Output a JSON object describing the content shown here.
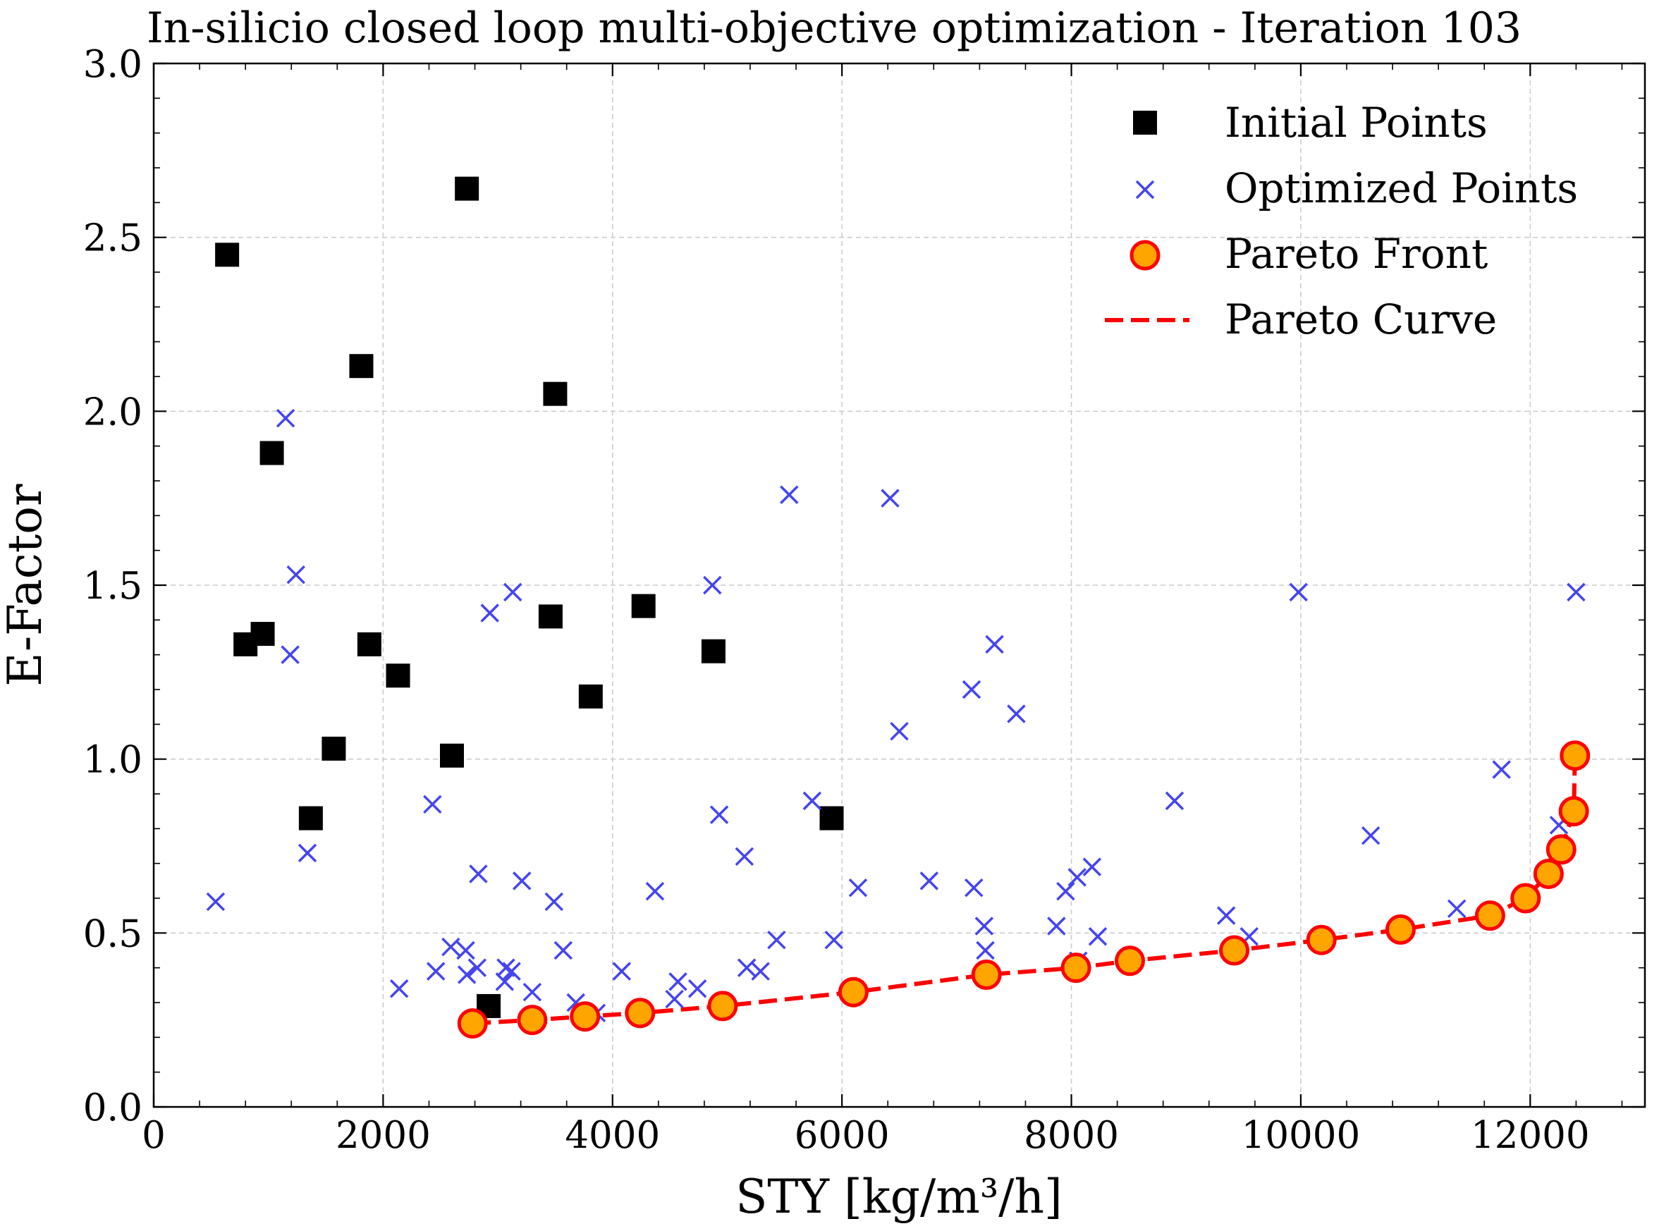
{
  "chart_data": {
    "type": "scatter",
    "title": "In-silicio closed loop multi-objective optimization - Iteration 103",
    "xlabel": "STY [kg/m³/h]",
    "ylabel": "E-Factor",
    "xlim": [
      0,
      13000
    ],
    "ylim": [
      0,
      3.0
    ],
    "xticks": [
      0,
      2000,
      4000,
      6000,
      8000,
      10000,
      12000
    ],
    "yticks": [
      0.0,
      0.5,
      1.0,
      1.5,
      2.0,
      2.5,
      3.0
    ],
    "xtick_labels": [
      "0",
      "2000",
      "4000",
      "6000",
      "8000",
      "10000",
      "12000"
    ],
    "ytick_labels": [
      "0.0",
      "0.5",
      "1.0",
      "1.5",
      "2.0",
      "2.5",
      "3.0"
    ],
    "grid": true,
    "legend_position": "top-right",
    "colors": {
      "initial": "#000000",
      "optimized": "#4444ee",
      "pareto_fill": "#ffa500",
      "pareto_edge": "#ff0000",
      "curve": "#ff0000",
      "grid": "#cccccc"
    },
    "series": [
      {
        "name": "Initial Points",
        "marker": "square",
        "points": [
          [
            640,
            2.45
          ],
          [
            2730,
            2.64
          ],
          [
            1810,
            2.13
          ],
          [
            3500,
            2.05
          ],
          [
            1030,
            1.88
          ],
          [
            950,
            1.36
          ],
          [
            800,
            1.33
          ],
          [
            1880,
            1.33
          ],
          [
            2130,
            1.24
          ],
          [
            3460,
            1.41
          ],
          [
            4270,
            1.44
          ],
          [
            4880,
            1.31
          ],
          [
            3810,
            1.18
          ],
          [
            1570,
            1.03
          ],
          [
            2600,
            1.01
          ],
          [
            1370,
            0.83
          ],
          [
            5910,
            0.83
          ],
          [
            2920,
            0.29
          ]
        ]
      },
      {
        "name": "Optimized Points",
        "marker": "x",
        "points": [
          [
            1150,
            1.98
          ],
          [
            1240,
            1.53
          ],
          [
            1190,
            1.3
          ],
          [
            1340,
            0.73
          ],
          [
            540,
            0.59
          ],
          [
            2430,
            0.87
          ],
          [
            2140,
            0.34
          ],
          [
            2460,
            0.39
          ],
          [
            2590,
            0.46
          ],
          [
            2720,
            0.45
          ],
          [
            2730,
            0.38
          ],
          [
            2820,
            0.4
          ],
          [
            2830,
            0.67
          ],
          [
            2930,
            1.42
          ],
          [
            3130,
            1.48
          ],
          [
            3210,
            0.65
          ],
          [
            3070,
            0.4
          ],
          [
            3120,
            0.39
          ],
          [
            3060,
            0.36
          ],
          [
            3300,
            0.33
          ],
          [
            3490,
            0.59
          ],
          [
            3570,
            0.45
          ],
          [
            3680,
            0.3
          ],
          [
            3860,
            0.27
          ],
          [
            4080,
            0.39
          ],
          [
            4370,
            0.62
          ],
          [
            4540,
            0.31
          ],
          [
            4570,
            0.36
          ],
          [
            4740,
            0.34
          ],
          [
            4870,
            1.5
          ],
          [
            4930,
            0.84
          ],
          [
            5150,
            0.72
          ],
          [
            5170,
            0.4
          ],
          [
            5290,
            0.39
          ],
          [
            5430,
            0.48
          ],
          [
            5540,
            1.76
          ],
          [
            5740,
            0.88
          ],
          [
            5930,
            0.48
          ],
          [
            6140,
            0.63
          ],
          [
            6420,
            1.75
          ],
          [
            6500,
            1.08
          ],
          [
            6760,
            0.65
          ],
          [
            7130,
            1.2
          ],
          [
            7150,
            0.63
          ],
          [
            7240,
            0.52
          ],
          [
            7250,
            0.45
          ],
          [
            7330,
            1.33
          ],
          [
            7520,
            1.13
          ],
          [
            7870,
            0.52
          ],
          [
            7950,
            0.62
          ],
          [
            8050,
            0.66
          ],
          [
            8180,
            0.69
          ],
          [
            8230,
            0.49
          ],
          [
            8060,
            0.42
          ],
          [
            8900,
            0.88
          ],
          [
            9350,
            0.55
          ],
          [
            9550,
            0.49
          ],
          [
            9980,
            1.48
          ],
          [
            10610,
            0.78
          ],
          [
            11360,
            0.57
          ],
          [
            11750,
            0.97
          ],
          [
            12250,
            0.81
          ],
          [
            12400,
            1.48
          ]
        ]
      },
      {
        "name": "Pareto Front",
        "marker": "circle",
        "points": [
          [
            2780,
            0.24
          ],
          [
            3300,
            0.25
          ],
          [
            3760,
            0.26
          ],
          [
            4240,
            0.27
          ],
          [
            4960,
            0.29
          ],
          [
            6100,
            0.33
          ],
          [
            7260,
            0.38
          ],
          [
            8040,
            0.4
          ],
          [
            8510,
            0.42
          ],
          [
            9420,
            0.45
          ],
          [
            10180,
            0.48
          ],
          [
            10870,
            0.51
          ],
          [
            11650,
            0.55
          ],
          [
            11960,
            0.6
          ],
          [
            12160,
            0.67
          ],
          [
            12270,
            0.74
          ],
          [
            12380,
            0.85
          ],
          [
            12390,
            1.01
          ]
        ]
      },
      {
        "name": "Pareto Curve",
        "marker": "dashed-line",
        "points": [
          [
            2780,
            0.24
          ],
          [
            3300,
            0.25
          ],
          [
            3760,
            0.26
          ],
          [
            4240,
            0.27
          ],
          [
            4960,
            0.29
          ],
          [
            6100,
            0.33
          ],
          [
            7260,
            0.38
          ],
          [
            8040,
            0.4
          ],
          [
            8510,
            0.42
          ],
          [
            9420,
            0.45
          ],
          [
            10180,
            0.48
          ],
          [
            10870,
            0.51
          ],
          [
            11650,
            0.55
          ],
          [
            11960,
            0.6
          ],
          [
            12160,
            0.67
          ],
          [
            12270,
            0.74
          ],
          [
            12380,
            0.85
          ],
          [
            12390,
            1.01
          ]
        ]
      }
    ]
  }
}
